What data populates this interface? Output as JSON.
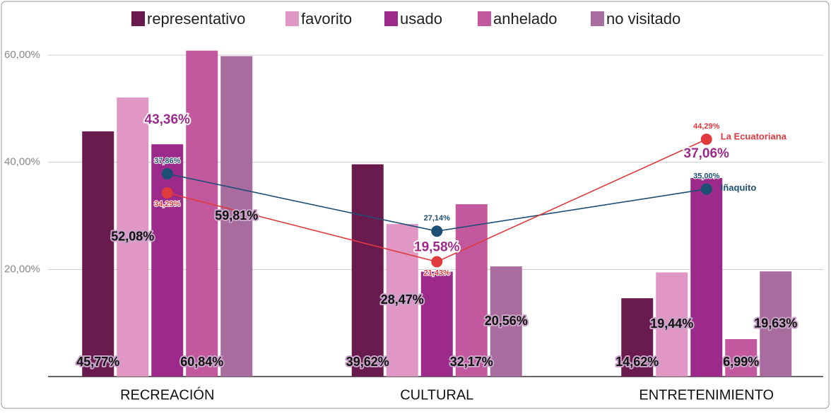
{
  "chart_data": {
    "type": "bar",
    "categories": [
      "RECREACIÓN",
      "CULTURAL",
      "ENTRETENIMIENTO"
    ],
    "series": [
      {
        "name": "representativo",
        "color": "#6a1b4d",
        "values": [
          45.77,
          39.62,
          14.62
        ],
        "value_labels": [
          "45,77%",
          "39,62%",
          "14,62%"
        ]
      },
      {
        "name": "favorito",
        "color": "#e097c4",
        "values": [
          52.08,
          28.47,
          19.44
        ],
        "value_labels": [
          "52,08%",
          "28,47%",
          "19,44%"
        ]
      },
      {
        "name": "usado",
        "color": "#9c2a8a",
        "values": [
          43.36,
          19.58,
          37.06
        ],
        "value_labels": [
          "43,36%",
          "19,58%",
          "37,06%"
        ]
      },
      {
        "name": "anhelado",
        "color": "#c4589e",
        "values": [
          60.84,
          32.17,
          6.99
        ],
        "value_labels": [
          "60,84%",
          "32,17%",
          "6,99%"
        ]
      },
      {
        "name": "no visitado",
        "color": "#a86c9e",
        "values": [
          59.81,
          20.56,
          19.63
        ],
        "value_labels": [
          "59,81%",
          "20,56%",
          "19,63%"
        ]
      }
    ],
    "lines": [
      {
        "name": "Iñaquito",
        "color": "#1d4e73",
        "values": [
          37.86,
          27.14,
          35.0
        ],
        "value_labels": [
          "37,86%",
          "27,14%",
          "35,00%"
        ]
      },
      {
        "name": "La Ecuatoriana",
        "color": "#e03a3e",
        "values": [
          34.29,
          21.43,
          44.29
        ],
        "value_labels": [
          "34,29%",
          "21,43%",
          "44,29%"
        ]
      }
    ],
    "ylim": [
      0,
      65
    ],
    "yticks": [
      {
        "value": 20,
        "label": "20,00%"
      },
      {
        "value": 40,
        "label": "40,00%"
      },
      {
        "value": 60,
        "label": "60,00%"
      }
    ],
    "grid": true,
    "legend": "top"
  }
}
